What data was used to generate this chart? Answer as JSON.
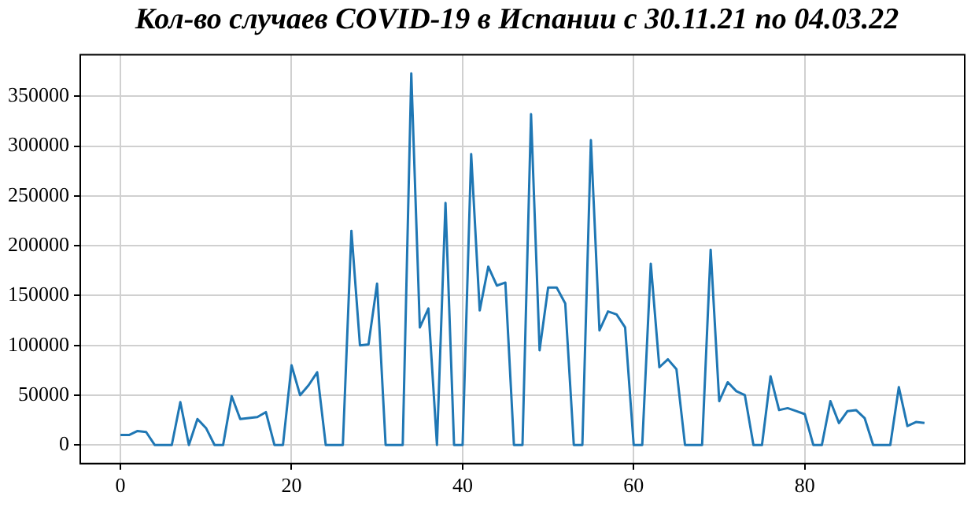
{
  "chart_data": {
    "type": "line",
    "title": "Кол-во случаев COVID-19 в Испании с 30.11.21 по 04.03.22",
    "x": [
      0,
      1,
      2,
      3,
      4,
      5,
      6,
      7,
      8,
      9,
      10,
      11,
      12,
      13,
      14,
      15,
      16,
      17,
      18,
      19,
      20,
      21,
      22,
      23,
      24,
      25,
      26,
      27,
      28,
      29,
      30,
      31,
      32,
      33,
      34,
      35,
      36,
      37,
      38,
      39,
      40,
      41,
      42,
      43,
      44,
      45,
      46,
      47,
      48,
      49,
      50,
      51,
      52,
      53,
      54,
      55,
      56,
      57,
      58,
      59,
      60,
      61,
      62,
      63,
      64,
      65,
      66,
      67,
      68,
      69,
      70,
      71,
      72,
      73,
      74,
      75,
      76,
      77,
      78,
      79,
      80,
      81,
      82,
      83,
      84,
      85,
      86,
      87,
      88,
      89,
      90,
      91,
      92,
      93,
      94
    ],
    "series": [
      {
        "color": "#1f77b4",
        "values": [
          10000,
          10000,
          14000,
          13000,
          0,
          0,
          0,
          43000,
          0,
          26000,
          17000,
          0,
          0,
          49000,
          26000,
          27000,
          28000,
          33000,
          0,
          0,
          80000,
          50000,
          60000,
          73000,
          0,
          0,
          0,
          215000,
          100000,
          101000,
          162000,
          0,
          0,
          0,
          373000,
          118000,
          137000,
          0,
          243000,
          0,
          0,
          292000,
          135000,
          179000,
          160000,
          163000,
          0,
          0,
          332000,
          95000,
          158000,
          158000,
          142000,
          0,
          0,
          306000,
          115000,
          134000,
          131000,
          118000,
          0,
          0,
          182000,
          78000,
          86000,
          76000,
          0,
          0,
          0,
          196000,
          44000,
          63000,
          54000,
          50000,
          0,
          0,
          69000,
          35000,
          37000,
          34000,
          31000,
          0,
          0,
          44000,
          22000,
          34000,
          35000,
          27000,
          0,
          0,
          0,
          58000,
          19000,
          23000,
          22000
        ]
      }
    ],
    "xlim": [
      -4.7,
      98.7
    ],
    "ylim": [
      -18650,
      391650
    ],
    "xticks": [
      0,
      20,
      40,
      60,
      80
    ],
    "yticks": [
      0,
      50000,
      100000,
      150000,
      200000,
      250000,
      300000,
      350000
    ],
    "grid": true,
    "legend": false,
    "marker": "none",
    "line_style": "solid"
  }
}
